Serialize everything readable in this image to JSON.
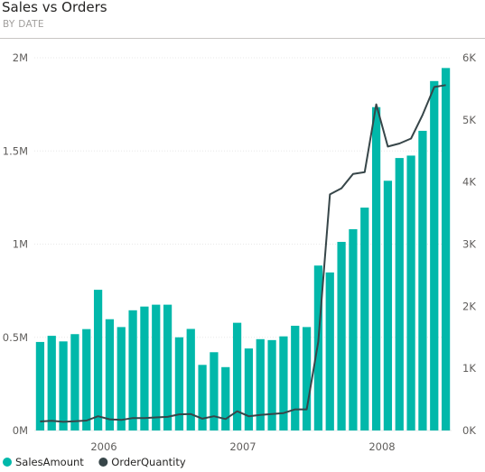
{
  "chart_data": {
    "type": "bar",
    "title": "Sales vs Orders",
    "subtitle": "BY DATE",
    "colors": {
      "bars": "#01b8aa",
      "line": "#374649"
    },
    "x_tick_labels": [
      "2006",
      "2007",
      "2008"
    ],
    "x_tick_indices": [
      6,
      18,
      30
    ],
    "y_left": {
      "ticks": [
        "0M",
        "0.5M",
        "1M",
        "1.5M",
        "2M"
      ],
      "tick_values": [
        0,
        500000,
        1000000,
        1500000,
        2000000
      ],
      "ylim": [
        0,
        2000000
      ]
    },
    "y_right": {
      "ticks": [
        "0K",
        "1K",
        "2K",
        "3K",
        "4K",
        "5K",
        "6K"
      ],
      "tick_values": [
        0,
        1000,
        2000,
        3000,
        4000,
        5000,
        6000
      ],
      "ylim": [
        0,
        6000
      ]
    },
    "grid": true,
    "legend_position": "bottom-left",
    "series": [
      {
        "name": "SalesAmount",
        "type": "bar",
        "axis": "left",
        "values": [
          475000,
          508000,
          478000,
          517000,
          544000,
          755000,
          597000,
          555000,
          645000,
          665000,
          675000,
          675000,
          500000,
          545000,
          352000,
          420000,
          340000,
          578000,
          440000,
          490000,
          485000,
          505000,
          562000,
          555000,
          885000,
          848000,
          1012000,
          1080000,
          1196000,
          1735000,
          1340000,
          1462000,
          1475000,
          1608000,
          1875000,
          1945000
        ]
      },
      {
        "name": "OrderQuantity",
        "type": "line",
        "axis": "right",
        "values": [
          145,
          155,
          140,
          150,
          160,
          230,
          180,
          170,
          200,
          200,
          210,
          220,
          260,
          265,
          190,
          230,
          185,
          310,
          230,
          250,
          265,
          280,
          340,
          340,
          1430,
          3800,
          3900,
          4130,
          4160,
          5250,
          4570,
          4620,
          4700,
          5080,
          5530,
          5560
        ]
      }
    ]
  }
}
